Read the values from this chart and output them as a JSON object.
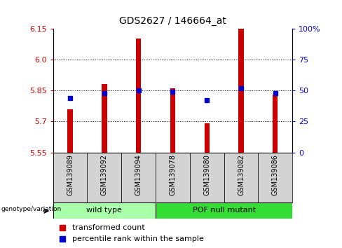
{
  "title": "GDS2627 / 146664_at",
  "samples": [
    "GSM139089",
    "GSM139092",
    "GSM139094",
    "GSM139078",
    "GSM139080",
    "GSM139082",
    "GSM139086"
  ],
  "transformed_count": [
    5.76,
    5.88,
    6.1,
    5.86,
    5.69,
    6.15,
    5.83
  ],
  "percentile_rank": [
    44,
    48,
    50,
    49,
    42,
    52,
    48
  ],
  "ymin": 5.55,
  "ymax": 6.15,
  "yticks": [
    5.55,
    5.7,
    5.85,
    6.0,
    6.15
  ],
  "percentile_ticks": [
    0,
    25,
    50,
    75,
    100
  ],
  "bar_color": "#cc0000",
  "dot_color": "#0000cc",
  "wild_type_color": "#aaffaa",
  "pof_color": "#33dd33",
  "title_color": "#000000",
  "left_tick_color": "#cc0000",
  "right_tick_color": "#0000cc",
  "background_color": "#ffffff",
  "bar_width": 0.15,
  "genotype_label": "genotype/variation",
  "legend_items": [
    "transformed count",
    "percentile rank within the sample"
  ],
  "wild_type_samples": 3,
  "pof_samples": 4
}
